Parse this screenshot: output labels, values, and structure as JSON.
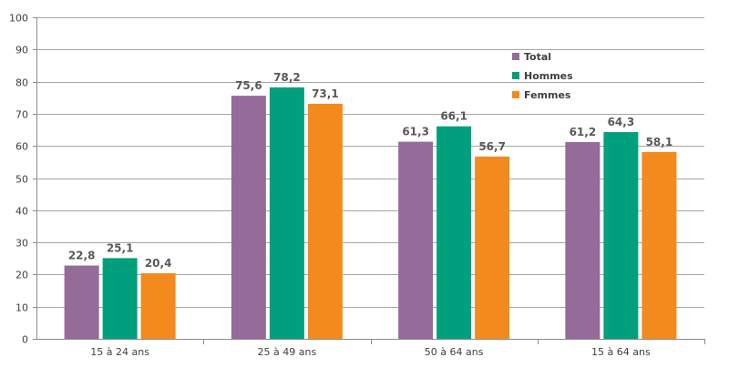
{
  "chart_data": {
    "type": "bar",
    "title": "",
    "xlabel": "",
    "ylabel": "",
    "ylim": [
      0,
      100
    ],
    "yticks": [
      0,
      10,
      20,
      30,
      40,
      50,
      60,
      70,
      80,
      90,
      100
    ],
    "grid": true,
    "legend_position": "top-right",
    "categories": [
      "15 à 24 ans",
      "25 à 49 ans",
      "50 à 64 ans",
      "15 à 64 ans"
    ],
    "series": [
      {
        "name": "Total",
        "color": "#956B9A",
        "values": [
          22.8,
          75.6,
          61.3,
          61.2
        ],
        "labels": [
          "22,8",
          "75,6",
          "61,3",
          "61,2"
        ]
      },
      {
        "name": "Hommes",
        "color": "#00A07E",
        "values": [
          25.1,
          78.2,
          66.1,
          64.3
        ],
        "labels": [
          "25,1",
          "78,2",
          "66,1",
          "64,3"
        ]
      },
      {
        "name": "Femmes",
        "color": "#F38A1E",
        "values": [
          20.4,
          73.1,
          56.7,
          58.1
        ],
        "labels": [
          "20,4",
          "73,1",
          "56,7",
          "58,1"
        ]
      }
    ]
  }
}
